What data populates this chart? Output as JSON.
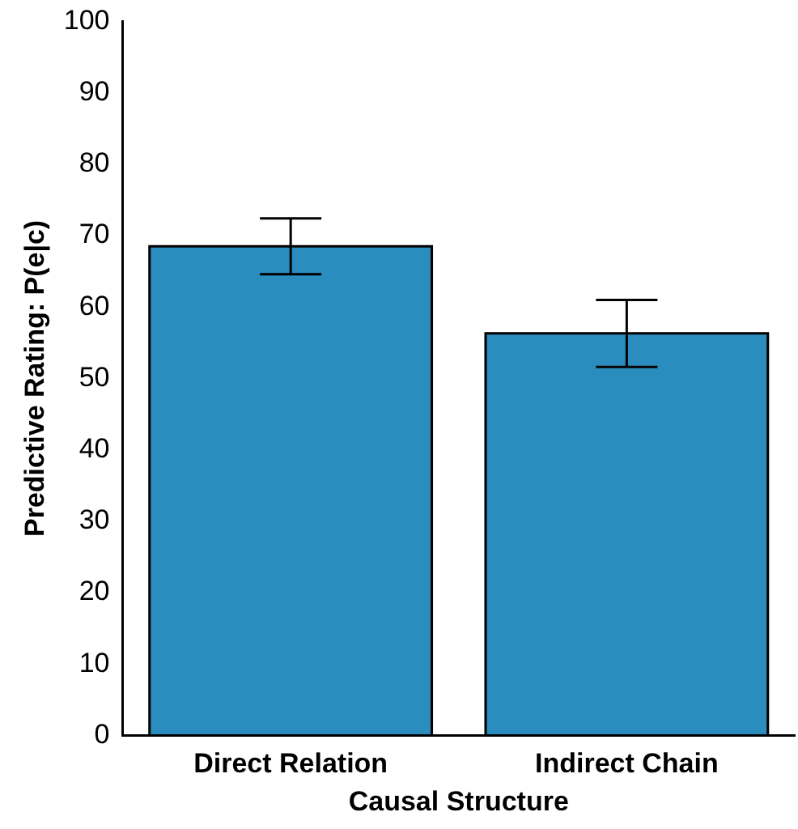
{
  "chart_data": {
    "type": "bar",
    "xlabel": "Causal Structure",
    "ylabel": "Predictive Rating: P(e|c)",
    "categories": [
      "Direct Relation",
      "Indirect Chain"
    ],
    "values": [
      68.5,
      56.3
    ],
    "errors": [
      3.9,
      4.7
    ],
    "color": "#2b8cbe",
    "ylim": [
      0,
      100
    ],
    "yticks": [
      0,
      10,
      20,
      30,
      40,
      50,
      60,
      70,
      80,
      90,
      100
    ],
    "grid": false,
    "legend": false
  }
}
